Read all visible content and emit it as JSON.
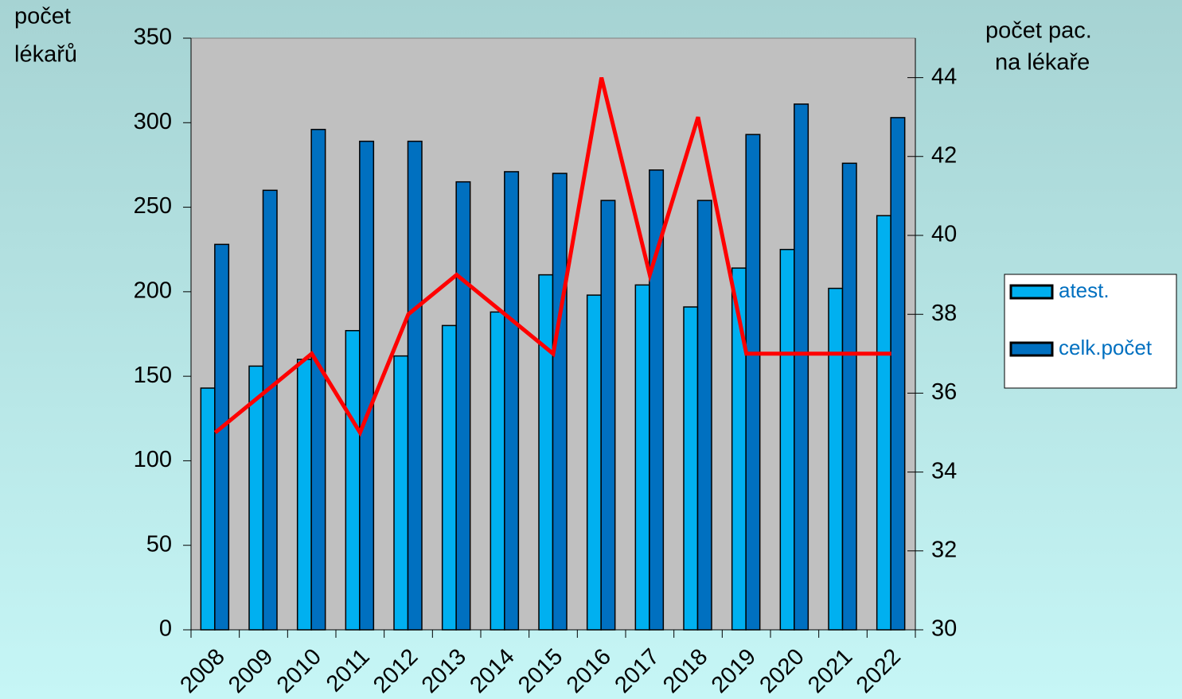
{
  "chart_data": {
    "type": "bar_line",
    "y_label": [
      "počet",
      "lékařů"
    ],
    "y2_label": [
      "počet pac.",
      "na lékaře"
    ],
    "categories": [
      "2008",
      "2009",
      "2010",
      "2011",
      "2012",
      "2013",
      "2014",
      "2015",
      "2016",
      "2017",
      "2018",
      "2019",
      "2020",
      "2021",
      "2022"
    ],
    "series": [
      {
        "name": "atest.",
        "color": "#00b0f0",
        "type": "bar",
        "values": [
          143,
          156,
          160,
          177,
          162,
          180,
          188,
          210,
          198,
          204,
          191,
          214,
          225,
          202,
          245
        ]
      },
      {
        "name": "celk.počet",
        "color": "#0070c0",
        "type": "bar",
        "values": [
          228,
          260,
          296,
          289,
          289,
          265,
          271,
          270,
          254,
          272,
          254,
          293,
          311,
          276,
          303
        ]
      },
      {
        "color": "#ff0000",
        "type": "line",
        "axis": "y2",
        "values": [
          35,
          36,
          37,
          35,
          38,
          39,
          38,
          37,
          44,
          39,
          43,
          37,
          37,
          37,
          37
        ]
      }
    ],
    "ylim": [
      0,
      350
    ],
    "yticks": [
      0,
      50,
      100,
      150,
      200,
      250,
      300,
      350
    ],
    "y2lim": [
      30,
      45
    ],
    "y2ticks": [
      30,
      32,
      34,
      36,
      38,
      40,
      42,
      44
    ],
    "plot_background": "#c0c0c0"
  }
}
